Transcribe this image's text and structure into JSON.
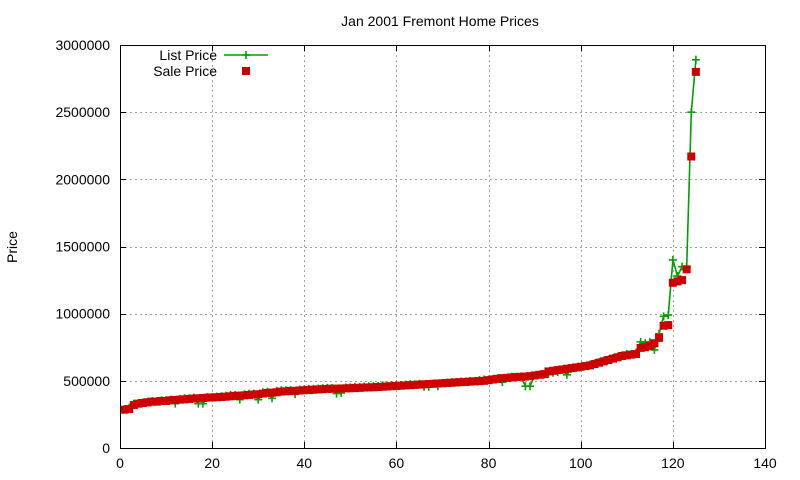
{
  "chart_data": {
    "type": "line",
    "title": "Jan 2001 Fremont Home Prices",
    "xlabel": "",
    "ylabel": "Price",
    "xlim": [
      0,
      140
    ],
    "ylim": [
      0,
      3000000
    ],
    "xticks": [
      "0",
      "20",
      "40",
      "60",
      "80",
      "100",
      "120",
      "140"
    ],
    "yticks": [
      "0",
      "500000",
      "1000000",
      "1500000",
      "2000000",
      "2500000",
      "3000000"
    ],
    "grid": true,
    "legend_position": "top-left",
    "series": [
      {
        "name": "List Price",
        "style": "linespoints",
        "marker": "plus",
        "color": "#00a000",
        "x": [
          1,
          2,
          3,
          4,
          5,
          6,
          7,
          8,
          9,
          10,
          11,
          12,
          13,
          14,
          15,
          16,
          17,
          18,
          19,
          20,
          21,
          22,
          23,
          24,
          25,
          26,
          27,
          28,
          29,
          30,
          31,
          32,
          33,
          34,
          35,
          36,
          37,
          38,
          39,
          40,
          41,
          42,
          43,
          44,
          45,
          46,
          47,
          48,
          49,
          50,
          51,
          52,
          53,
          54,
          55,
          56,
          57,
          58,
          59,
          60,
          61,
          62,
          63,
          64,
          65,
          66,
          67,
          68,
          69,
          70,
          71,
          72,
          73,
          74,
          75,
          76,
          77,
          78,
          79,
          80,
          81,
          82,
          83,
          84,
          85,
          86,
          87,
          88,
          89,
          90,
          91,
          92,
          93,
          94,
          95,
          96,
          97,
          98,
          99,
          100,
          101,
          102,
          103,
          104,
          105,
          106,
          107,
          108,
          109,
          110,
          111,
          112,
          113,
          114,
          115,
          116,
          117,
          118,
          119,
          120,
          121,
          122,
          123,
          124,
          125
        ],
        "values": [
          290000,
          300000,
          330000,
          335000,
          340000,
          345000,
          350000,
          350000,
          355000,
          355000,
          360000,
          330000,
          365000,
          370000,
          370000,
          375000,
          330000,
          330000,
          380000,
          380000,
          382000,
          385000,
          390000,
          395000,
          395000,
          360000,
          400000,
          405000,
          405000,
          360000,
          415000,
          420000,
          370000,
          425000,
          430000,
          430000,
          432000,
          400000,
          435000,
          438000,
          440000,
          440000,
          442000,
          445000,
          448000,
          448000,
          405000,
          410000,
          450000,
          452000,
          455000,
          455000,
          458000,
          460000,
          460000,
          462000,
          465000,
          465000,
          468000,
          470000,
          470000,
          472000,
          475000,
          475000,
          478000,
          455000,
          455000,
          480000,
          460000,
          485000,
          488000,
          490000,
          492000,
          495000,
          495000,
          500000,
          500000,
          505000,
          510000,
          510000,
          515000,
          520000,
          490000,
          525000,
          530000,
          530000,
          532000,
          460000,
          460000,
          540000,
          545000,
          545000,
          550000,
          560000,
          565000,
          580000,
          545000,
          590000,
          595000,
          600000,
          610000,
          620000,
          630000,
          640000,
          650000,
          660000,
          670000,
          680000,
          690000,
          700000,
          700000,
          710000,
          790000,
          780000,
          790000,
          730000,
          850000,
          980000,
          990000,
          1400000,
          1280000,
          1350000,
          1350000,
          2500000,
          2890000
        ]
      },
      {
        "name": "Sale Price",
        "style": "points",
        "marker": "square",
        "color": "#cc0000",
        "x": [
          1,
          2,
          3,
          4,
          5,
          6,
          7,
          8,
          9,
          10,
          11,
          12,
          13,
          14,
          15,
          16,
          17,
          18,
          19,
          20,
          21,
          22,
          23,
          24,
          25,
          26,
          27,
          28,
          29,
          30,
          31,
          32,
          33,
          34,
          35,
          36,
          37,
          38,
          39,
          40,
          41,
          42,
          43,
          44,
          45,
          46,
          47,
          48,
          49,
          50,
          51,
          52,
          53,
          54,
          55,
          56,
          57,
          58,
          59,
          60,
          61,
          62,
          63,
          64,
          65,
          66,
          67,
          68,
          69,
          70,
          71,
          72,
          73,
          74,
          75,
          76,
          77,
          78,
          79,
          80,
          81,
          82,
          83,
          84,
          85,
          86,
          87,
          88,
          89,
          90,
          91,
          92,
          93,
          94,
          95,
          96,
          97,
          98,
          99,
          100,
          101,
          102,
          103,
          104,
          105,
          106,
          107,
          108,
          109,
          110,
          111,
          112,
          113,
          114,
          115,
          116,
          117,
          118,
          119,
          120,
          121,
          122,
          123,
          124,
          125
        ],
        "values": [
          285000,
          290000,
          320000,
          330000,
          335000,
          340000,
          345000,
          345000,
          350000,
          350000,
          355000,
          358000,
          360000,
          362000,
          365000,
          368000,
          370000,
          372000,
          375000,
          376000,
          378000,
          380000,
          382000,
          385000,
          388000,
          390000,
          392000,
          395000,
          398000,
          400000,
          405000,
          410000,
          412000,
          415000,
          420000,
          422000,
          424000,
          426000,
          428000,
          430000,
          432000,
          434000,
          436000,
          438000,
          440000,
          441000,
          442000,
          443000,
          444000,
          445000,
          446000,
          448000,
          450000,
          451000,
          452000,
          454000,
          456000,
          458000,
          460000,
          462000,
          464000,
          466000,
          468000,
          470000,
          472000,
          474000,
          476000,
          478000,
          480000,
          482000,
          484000,
          486000,
          488000,
          490000,
          492000,
          494000,
          496000,
          498000,
          500000,
          505000,
          510000,
          515000,
          520000,
          522000,
          525000,
          528000,
          530000,
          532000,
          535000,
          540000,
          545000,
          550000,
          570000,
          575000,
          580000,
          585000,
          590000,
          595000,
          600000,
          605000,
          610000,
          615000,
          625000,
          635000,
          645000,
          655000,
          665000,
          675000,
          685000,
          690000,
          695000,
          700000,
          745000,
          750000,
          760000,
          780000,
          820000,
          910000,
          915000,
          1230000,
          1240000,
          1250000,
          1330000,
          2170000,
          2800000
        ]
      }
    ]
  }
}
